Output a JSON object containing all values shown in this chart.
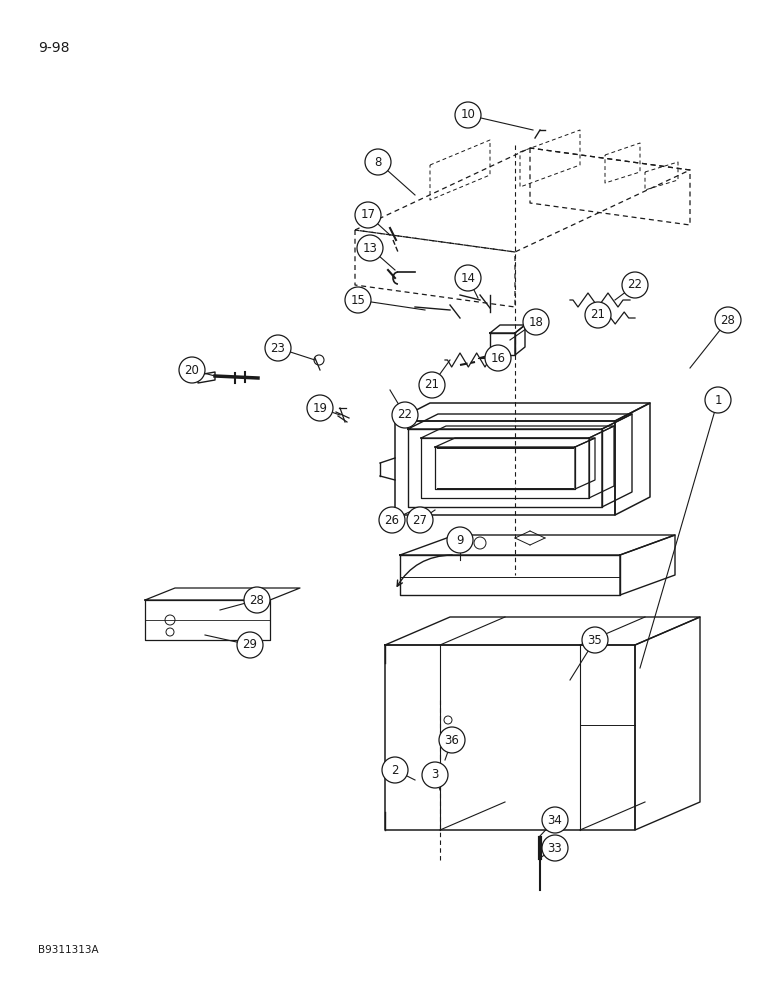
{
  "page_label": "9-98",
  "doc_code": "B9311313A",
  "bg_color": "#ffffff",
  "line_color": "#1a1a1a",
  "label_font_size": 8.5,
  "page_label_font_size": 10,
  "doc_code_font_size": 7.5,
  "figw": 7.76,
  "figh": 10.0,
  "dpi": 100
}
